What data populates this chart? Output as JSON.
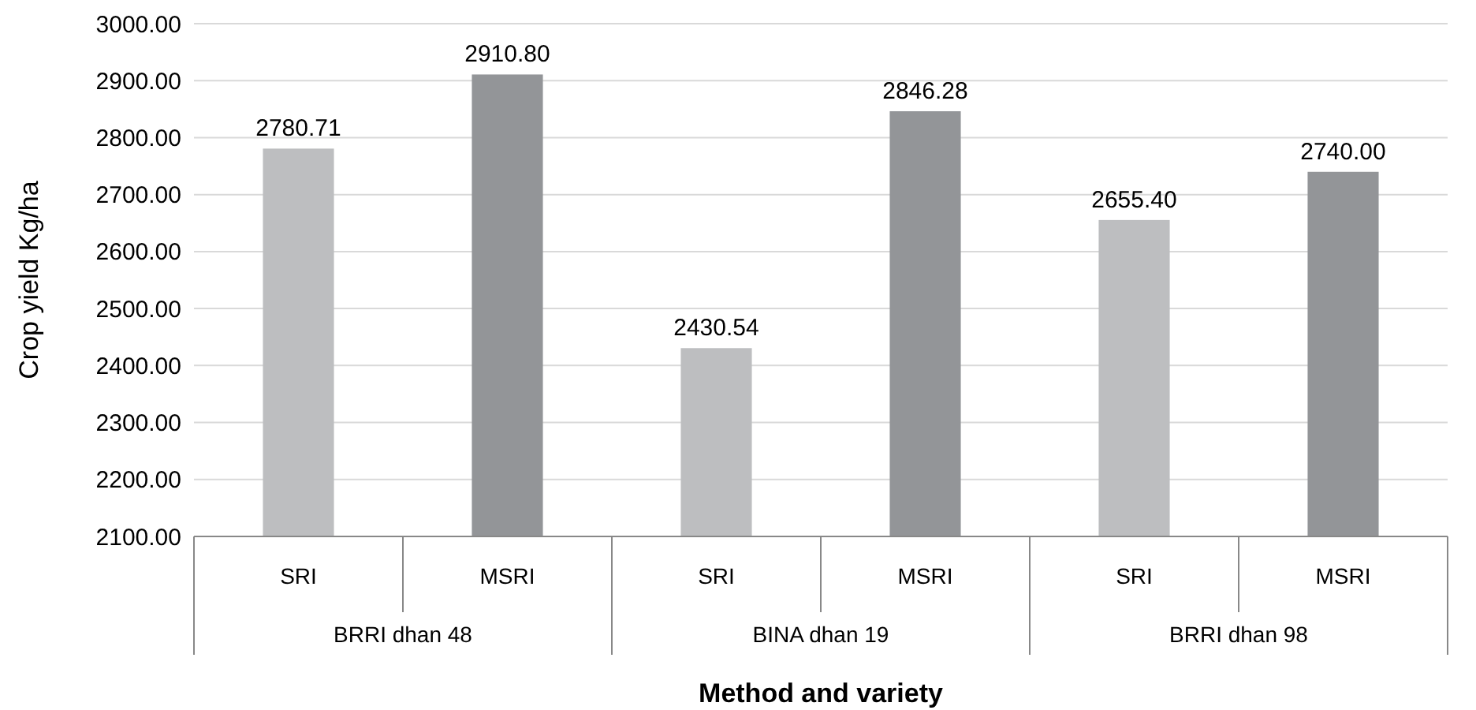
{
  "chart_data": {
    "type": "bar",
    "xlabel": "Method and variety",
    "ylabel": "Crop yield Kg/ha",
    "categories": [
      "SRI",
      "MSRI",
      "SRI",
      "MSRI",
      "SRI",
      "MSRI"
    ],
    "values": [
      2780.71,
      2910.8,
      2430.54,
      2846.28,
      2655.4,
      2740
    ],
    "value_labels": [
      "2780.71",
      "2910.80",
      "2430.54",
      "2846.28",
      "2655.40",
      "2740.00"
    ],
    "colors": [
      "#bdbec0",
      "#939598",
      "#bdbec0",
      "#939598",
      "#bdbec0",
      "#939598"
    ],
    "annotations": [
      "BRRI dhan 48",
      "BINA dhan 19",
      "BRRI dhan 98"
    ],
    "ylim": [
      2100,
      3000
    ],
    "yticks": [
      {
        "value": 2100,
        "label": "2100.00"
      },
      {
        "value": 2200,
        "label": "2200.00"
      },
      {
        "value": 2300,
        "label": "2300.00"
      },
      {
        "value": 2400,
        "label": "2400.00"
      },
      {
        "value": 2500,
        "label": "2500.00"
      },
      {
        "value": 2600,
        "label": "2600.00"
      },
      {
        "value": 2700,
        "label": "2700.00"
      },
      {
        "value": 2800,
        "label": "2800.00"
      },
      {
        "value": 2900,
        "label": "2900.00"
      },
      {
        "value": 3000,
        "label": "3000.00"
      }
    ],
    "grid": true
  }
}
